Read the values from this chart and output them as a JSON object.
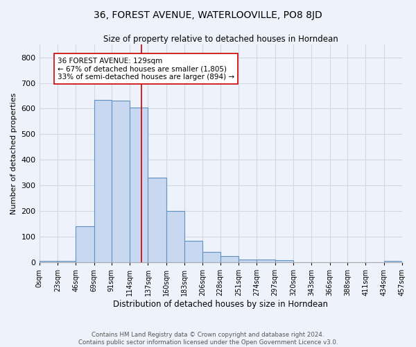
{
  "title": "36, FOREST AVENUE, WATERLOOVILLE, PO8 8JD",
  "subtitle": "Size of property relative to detached houses in Horndean",
  "xlabel": "Distribution of detached houses by size in Horndean",
  "ylabel": "Number of detached properties",
  "footer_line1": "Contains HM Land Registry data © Crown copyright and database right 2024.",
  "footer_line2": "Contains public sector information licensed under the Open Government Licence v3.0.",
  "bin_edges": [
    0,
    23,
    46,
    69,
    91,
    114,
    137,
    160,
    183,
    206,
    228,
    251,
    274,
    297,
    320,
    343,
    366,
    388,
    411,
    434,
    457
  ],
  "bar_heights": [
    5,
    5,
    140,
    635,
    630,
    605,
    330,
    200,
    85,
    40,
    25,
    10,
    12,
    7,
    0,
    0,
    0,
    0,
    0,
    5
  ],
  "bar_color": "#c8d8f0",
  "bar_edge_color": "#6090c0",
  "grid_color": "#d0d8e8",
  "bg_color": "#eef2fa",
  "property_line_x": 129,
  "property_line_color": "#cc0000",
  "annotation_text": "36 FOREST AVENUE: 129sqm\n← 67% of detached houses are smaller (1,805)\n33% of semi-detached houses are larger (894) →",
  "annotation_box_color": "#ffffff",
  "annotation_box_edge": "#cc0000",
  "ylim": [
    0,
    850
  ],
  "yticks": [
    0,
    100,
    200,
    300,
    400,
    500,
    600,
    700,
    800
  ],
  "tick_labels": [
    "0sqm",
    "23sqm",
    "46sqm",
    "69sqm",
    "91sqm",
    "114sqm",
    "137sqm",
    "160sqm",
    "183sqm",
    "206sqm",
    "228sqm",
    "251sqm",
    "274sqm",
    "297sqm",
    "320sqm",
    "343sqm",
    "366sqm",
    "388sqm",
    "411sqm",
    "434sqm",
    "457sqm"
  ]
}
